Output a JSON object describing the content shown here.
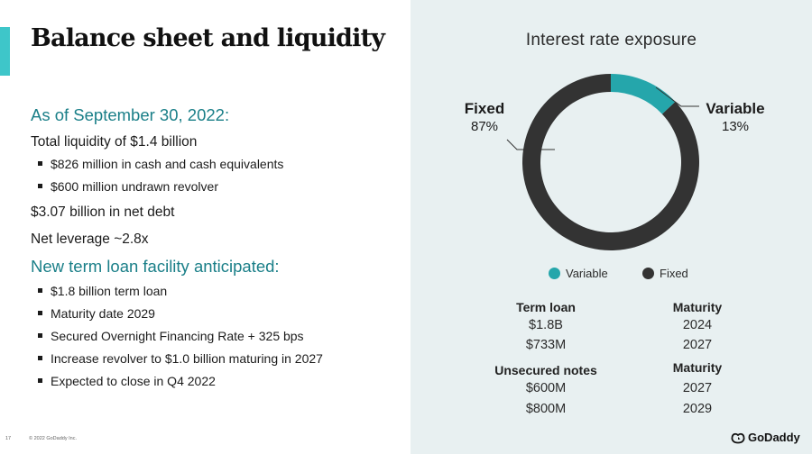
{
  "slide": {
    "title": "Balance sheet and liquidity",
    "page_number": "17",
    "copyright": "© 2022 GoDaddy Inc."
  },
  "left": {
    "as_of_heading": "As of September 30, 2022:",
    "total_liquidity": "Total liquidity of $1.4 billion",
    "liquidity_bullets": [
      "$826 million in cash and cash equivalents",
      "$600 million undrawn revolver"
    ],
    "net_debt": "$3.07 billion in net debt",
    "net_leverage": "Net leverage ~2.8x",
    "term_loan_heading": "New term loan facility anticipated:",
    "term_loan_bullets": [
      "$1.8 billion term loan",
      "Maturity date 2029",
      "Secured Overnight Financing Rate + 325 bps",
      "Increase revolver to $1.0 billion maturing in 2027",
      "Expected to close in Q4 2022"
    ]
  },
  "chart_data": {
    "type": "pie",
    "title": "Interest rate exposure",
    "slices": [
      {
        "label": "Variable",
        "value": 13,
        "display": "13%",
        "color": "#25a6ab"
      },
      {
        "label": "Fixed",
        "value": 87,
        "display": "87%",
        "color": "#333333"
      }
    ],
    "donut": true,
    "legend": [
      "Variable",
      "Fixed"
    ],
    "legend_placement": "bottom"
  },
  "debt_table": {
    "term_loan": {
      "header": "Term loan",
      "maturity_header": "Maturity",
      "rows": [
        {
          "amount": "$1.8B",
          "maturity": "2024"
        },
        {
          "amount": "$733M",
          "maturity": "2027"
        }
      ]
    },
    "unsecured_notes": {
      "header": "Unsecured notes",
      "maturity_header": "Maturity",
      "rows": [
        {
          "amount": "$600M",
          "maturity": "2027"
        },
        {
          "amount": "$800M",
          "maturity": "2029"
        }
      ]
    }
  },
  "brand": {
    "name": "GoDaddy",
    "icon": "godaddy-logo-icon"
  }
}
